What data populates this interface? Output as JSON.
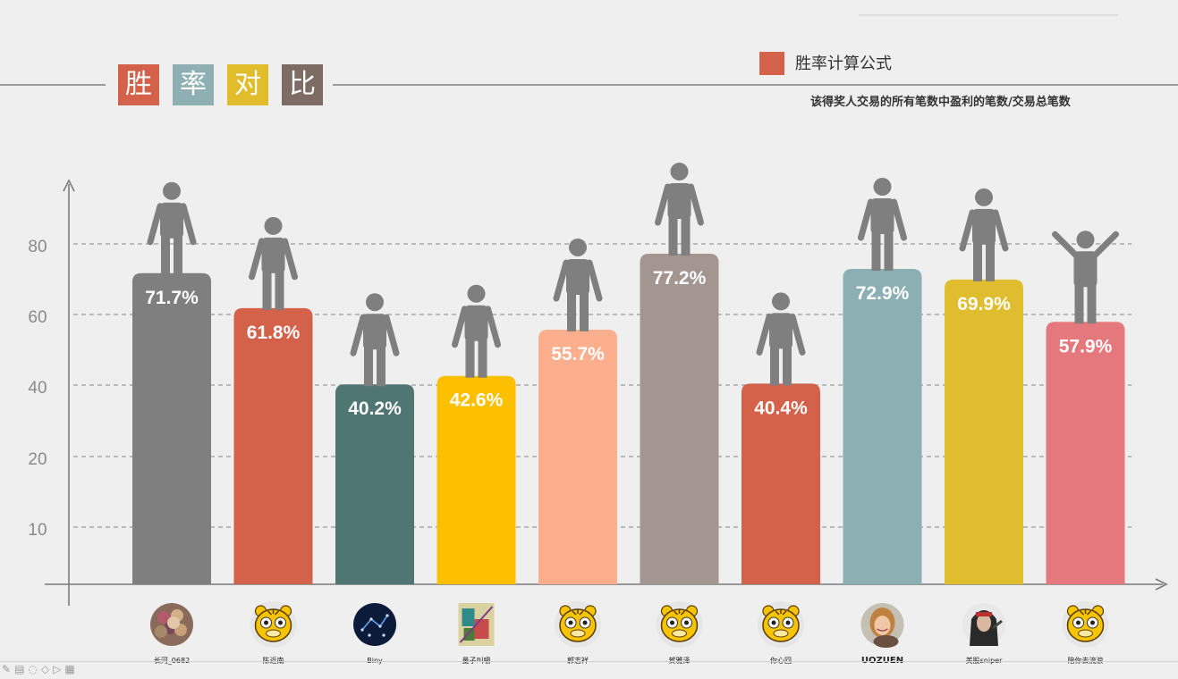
{
  "slide": {
    "title_chars": [
      "胜",
      "率",
      "对",
      "比"
    ],
    "title_colors": [
      "#d4614a",
      "#8fb0b2",
      "#e1bd2c",
      "#7d6c63"
    ],
    "legend": {
      "label": "胜率计算公式",
      "color": "#d4614a"
    },
    "formula": "该得奖人交易的所有笔数中盈利的笔数/交易总笔数",
    "toolbar_icons": [
      "pen-icon",
      "slide-icon",
      "comment-icon",
      "eraser-icon",
      "pointer-icon",
      "screen-icon"
    ]
  },
  "chart_data": {
    "type": "bar",
    "categories": [
      "长河_0682",
      "陈近南",
      "Biny",
      "量子叫嚼",
      "郭志祥",
      "贺雅泽",
      "你心回",
      "UOZUEN",
      "美股sniper",
      "陪你去流浪"
    ],
    "values": [
      71.7,
      61.8,
      40.2,
      42.6,
      55.7,
      77.2,
      40.4,
      72.9,
      69.9,
      57.9
    ],
    "value_labels": [
      "71.7%",
      "61.8%",
      "40.2%",
      "42.6%",
      "55.7%",
      "77.2%",
      "40.4%",
      "72.9%",
      "69.9%",
      "57.9%"
    ],
    "colors": [
      "#7f7f7f",
      "#d4614a",
      "#507673",
      "#fcc000",
      "#fdae8c",
      "#a39590",
      "#d4614a",
      "#8bafb2",
      "#dfbd2f",
      "#e5787c"
    ],
    "y_ticks": [
      {
        "value": 10,
        "label": "10"
      },
      {
        "value": 20,
        "label": "20"
      },
      {
        "value": 40,
        "label": "40"
      },
      {
        "value": 60,
        "label": "60"
      },
      {
        "value": 80,
        "label": "80"
      }
    ],
    "grid": "dashed",
    "ylim": [
      0,
      100
    ],
    "figure_color": "#7f7f7f",
    "avatars": [
      "food-photo-avatar",
      "tiger-cartoon-avatar",
      "galaxy-avatar",
      "painting-avatar",
      "tiger-cartoon-avatar",
      "tiger-cartoon-avatar",
      "tiger-cartoon-avatar",
      "woman-photo-avatar",
      "hooded-man-avatar",
      "tiger-cartoon-avatar"
    ],
    "cheering_index": 9
  }
}
